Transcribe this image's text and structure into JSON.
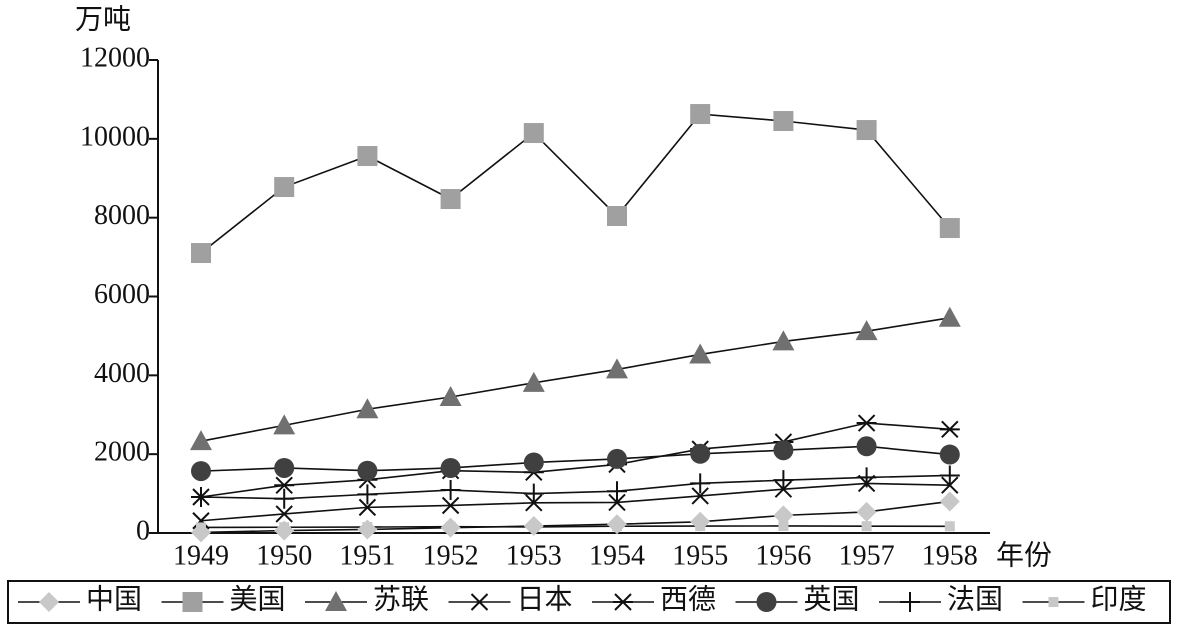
{
  "chart_data": {
    "type": "line",
    "y_label": "万吨",
    "x_label": "年份",
    "categories": [
      "1949",
      "1950",
      "1951",
      "1952",
      "1953",
      "1954",
      "1955",
      "1956",
      "1957",
      "1958"
    ],
    "series": [
      {
        "name": "中国",
        "color": "#c8c8c8",
        "marker": "diamond",
        "values": [
          16,
          61,
          90,
          135,
          177,
          223,
          285,
          447,
          535,
          800
        ]
      },
      {
        "name": "美国",
        "color": "#a0a0a0",
        "marker": "square",
        "values": [
          7103,
          8777,
          9564,
          8473,
          10147,
          8042,
          10629,
          10452,
          10223,
          7737
        ]
      },
      {
        "name": "苏联",
        "color": "#707070",
        "marker": "triangle",
        "values": [
          2330,
          2730,
          3140,
          3450,
          3810,
          4150,
          4530,
          4860,
          5120,
          5460
        ]
      },
      {
        "name": "日本",
        "color": "#111111",
        "marker": "x",
        "values": [
          311,
          484,
          650,
          698,
          766,
          775,
          941,
          1111,
          1257,
          1212
        ]
      },
      {
        "name": "西德",
        "color": "#111111",
        "marker": "asterisk",
        "values": [
          913,
          1210,
          1350,
          1580,
          1540,
          1740,
          2130,
          2310,
          2790,
          2630
        ]
      },
      {
        "name": "英国",
        "color": "#404040",
        "marker": "circle",
        "values": [
          1570,
          1650,
          1580,
          1650,
          1790,
          1880,
          2010,
          2100,
          2200,
          1990
        ]
      },
      {
        "name": "法国",
        "color": "#111111",
        "marker": "plus",
        "values": [
          913,
          870,
          980,
          1090,
          1000,
          1060,
          1260,
          1340,
          1410,
          1460
        ]
      },
      {
        "name": "印度",
        "color": "#c8c8c8",
        "marker": "small-square",
        "values": [
          140,
          146,
          151,
          160,
          153,
          171,
          176,
          178,
          173,
          170
        ]
      }
    ],
    "ylim": [
      0,
      12000
    ],
    "yticks": [
      0,
      2000,
      4000,
      6000,
      8000,
      10000,
      12000
    ]
  }
}
